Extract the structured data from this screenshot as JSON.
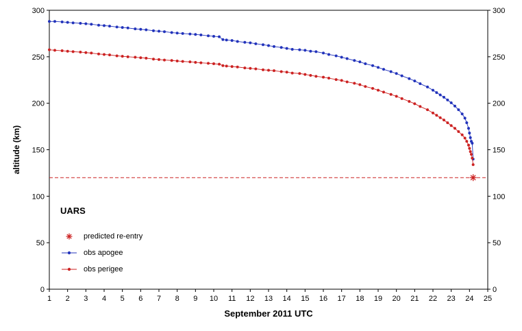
{
  "chart_data": {
    "type": "line",
    "xlabel": "September 2011 UTC",
    "ylabel": "altitude (km)",
    "xlim": [
      1,
      25
    ],
    "ylim": [
      0,
      300
    ],
    "xticks": [
      1,
      25,
      1
    ],
    "yticks": [
      0,
      300,
      50
    ],
    "grid": false,
    "legend_title": "UARS",
    "legend_position": "inside-bottom-left",
    "reentry_line_km": 120,
    "reentry_marker": {
      "x": 24.2,
      "y": 120
    },
    "colors": {
      "apogee": "#2233bb",
      "perigee": "#cc2222",
      "reentry": "#cc2222"
    },
    "legend": [
      {
        "id": "reentry",
        "label": "predicted re-entry"
      },
      {
        "id": "apogee",
        "label": "obs apogee"
      },
      {
        "id": "perigee",
        "label": "obs perigee"
      }
    ],
    "series": [
      {
        "id": "apogee",
        "name": "obs apogee",
        "points": [
          [
            1,
            288
          ],
          [
            1.3,
            288
          ],
          [
            1.7,
            287.5
          ],
          [
            2,
            287
          ],
          [
            2.3,
            286.5
          ],
          [
            2.7,
            286
          ],
          [
            3,
            285.5
          ],
          [
            3.3,
            285
          ],
          [
            3.7,
            284
          ],
          [
            4,
            283.5
          ],
          [
            4.3,
            283
          ],
          [
            4.7,
            282
          ],
          [
            5,
            281.5
          ],
          [
            5.3,
            281
          ],
          [
            5.7,
            280
          ],
          [
            6,
            279.5
          ],
          [
            6.3,
            279
          ],
          [
            6.7,
            278
          ],
          [
            7,
            277.5
          ],
          [
            7.3,
            277
          ],
          [
            7.7,
            276
          ],
          [
            8,
            275.5
          ],
          [
            8.3,
            275
          ],
          [
            8.7,
            274.5
          ],
          [
            9,
            274
          ],
          [
            9.3,
            273.5
          ],
          [
            9.7,
            272.5
          ],
          [
            10,
            272
          ],
          [
            10.3,
            271.5
          ],
          [
            10.5,
            268.5
          ],
          [
            10.7,
            268
          ],
          [
            11,
            267.5
          ],
          [
            11.3,
            266.5
          ],
          [
            11.7,
            265.5
          ],
          [
            12,
            265
          ],
          [
            12.3,
            264
          ],
          [
            12.7,
            263
          ],
          [
            13,
            262
          ],
          [
            13.3,
            261
          ],
          [
            13.7,
            260
          ],
          [
            14,
            259
          ],
          [
            14.3,
            258
          ],
          [
            14.7,
            257.5
          ],
          [
            15,
            257
          ],
          [
            15.3,
            256
          ],
          [
            15.6,
            255.5
          ],
          [
            16,
            254
          ],
          [
            16.3,
            252.5
          ],
          [
            16.7,
            251
          ],
          [
            17,
            249.5
          ],
          [
            17.3,
            248
          ],
          [
            17.7,
            246
          ],
          [
            18,
            244.5
          ],
          [
            18.3,
            242.5
          ],
          [
            18.7,
            240.5
          ],
          [
            19,
            238.5
          ],
          [
            19.3,
            236.5
          ],
          [
            19.7,
            234
          ],
          [
            20,
            232
          ],
          [
            20.3,
            229.5
          ],
          [
            20.7,
            226.5
          ],
          [
            21,
            224
          ],
          [
            21.3,
            221
          ],
          [
            21.7,
            217.5
          ],
          [
            22,
            214
          ],
          [
            22.2,
            211.5
          ],
          [
            22.4,
            209
          ],
          [
            22.6,
            206.5
          ],
          [
            22.8,
            203.5
          ],
          [
            23,
            200.5
          ],
          [
            23.2,
            197
          ],
          [
            23.4,
            193
          ],
          [
            23.6,
            188.5
          ],
          [
            23.75,
            184
          ],
          [
            23.85,
            179
          ],
          [
            23.95,
            173
          ],
          [
            24,
            168
          ],
          [
            24.05,
            163
          ],
          [
            24.1,
            159
          ],
          [
            24.15,
            157
          ],
          [
            24.2,
            140
          ]
        ]
      },
      {
        "id": "perigee",
        "name": "obs perigee",
        "points": [
          [
            1,
            257.5
          ],
          [
            1.3,
            257
          ],
          [
            1.7,
            256.5
          ],
          [
            2,
            256
          ],
          [
            2.3,
            255.5
          ],
          [
            2.7,
            255
          ],
          [
            3,
            254.5
          ],
          [
            3.3,
            254
          ],
          [
            3.7,
            253
          ],
          [
            4,
            252.5
          ],
          [
            4.3,
            252
          ],
          [
            4.7,
            251
          ],
          [
            5,
            250.5
          ],
          [
            5.3,
            250
          ],
          [
            5.7,
            249.5
          ],
          [
            6,
            249
          ],
          [
            6.3,
            248.5
          ],
          [
            6.7,
            247.5
          ],
          [
            7,
            247
          ],
          [
            7.3,
            246.5
          ],
          [
            7.7,
            246
          ],
          [
            8,
            245.5
          ],
          [
            8.3,
            245
          ],
          [
            8.7,
            244.5
          ],
          [
            9,
            244
          ],
          [
            9.3,
            243.5
          ],
          [
            9.7,
            243
          ],
          [
            10,
            242.5
          ],
          [
            10.3,
            242
          ],
          [
            10.5,
            240.5
          ],
          [
            10.7,
            240
          ],
          [
            11,
            239.5
          ],
          [
            11.3,
            239
          ],
          [
            11.7,
            238
          ],
          [
            12,
            237.5
          ],
          [
            12.3,
            237
          ],
          [
            12.7,
            236
          ],
          [
            13,
            235.5
          ],
          [
            13.3,
            235
          ],
          [
            13.7,
            234
          ],
          [
            14,
            233.5
          ],
          [
            14.3,
            232.5
          ],
          [
            14.7,
            232
          ],
          [
            15,
            231
          ],
          [
            15.3,
            230
          ],
          [
            15.6,
            229
          ],
          [
            16,
            228
          ],
          [
            16.3,
            227
          ],
          [
            16.7,
            225.5
          ],
          [
            17,
            224.5
          ],
          [
            17.3,
            223
          ],
          [
            17.7,
            221.5
          ],
          [
            18,
            220
          ],
          [
            18.3,
            218
          ],
          [
            18.7,
            216
          ],
          [
            19,
            214
          ],
          [
            19.3,
            212
          ],
          [
            19.7,
            209.5
          ],
          [
            20,
            207.5
          ],
          [
            20.3,
            205
          ],
          [
            20.7,
            202
          ],
          [
            21,
            199.5
          ],
          [
            21.3,
            196.5
          ],
          [
            21.7,
            193
          ],
          [
            22,
            189.5
          ],
          [
            22.2,
            187
          ],
          [
            22.4,
            184.5
          ],
          [
            22.6,
            182
          ],
          [
            22.8,
            179
          ],
          [
            23,
            176
          ],
          [
            23.2,
            173
          ],
          [
            23.4,
            169.5
          ],
          [
            23.6,
            166
          ],
          [
            23.75,
            162.5
          ],
          [
            23.85,
            159
          ],
          [
            23.95,
            155
          ],
          [
            24,
            151.5
          ],
          [
            24.05,
            148
          ],
          [
            24.1,
            145
          ],
          [
            24.15,
            141
          ],
          [
            24.2,
            134
          ]
        ]
      }
    ]
  }
}
